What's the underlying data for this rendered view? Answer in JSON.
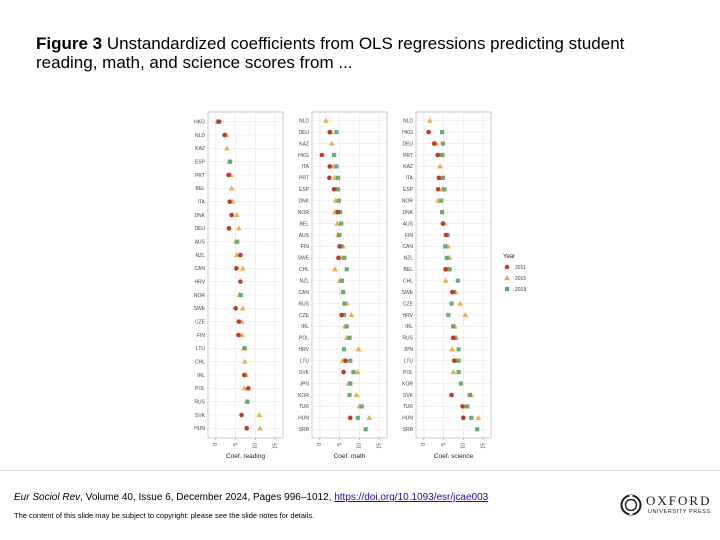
{
  "figure": {
    "label": "Figure 3",
    "title": "Unstandardized coefficients from OLS regressions predicting student reading, math, and science scores from ..."
  },
  "footer": {
    "journal": "Eur Sociol Rev",
    "details": ", Volume 40, Issue 6, December 2024, Pages 996–1012, ",
    "doi": "https://doi.org/10.1093/esr/jcae003",
    "note": "The content of this slide may be subject to copyright: please see the slide notes for details.",
    "logo_word": "OXFORD",
    "logo_sub": "UNIVERSITY PRESS"
  },
  "colors": {
    "2011": "#c0392b",
    "2015": "#e8a838",
    "2019": "#5aa469"
  },
  "chart_data": [
    {
      "type": "scatter",
      "xlabel": "Coef. reading",
      "xlim": [
        -2,
        17
      ],
      "xticks": [
        0,
        5,
        10,
        15
      ],
      "grid": true,
      "legend": "none",
      "categories": [
        "HKG",
        "NLD",
        "KAZ",
        "ESP",
        "PRT",
        "BEL",
        "ITA",
        "DNK",
        "DEU",
        "AUS",
        "NZL",
        "CAN",
        "HRV",
        "NOR",
        "SWE",
        "CZE",
        "FIN",
        "LTU",
        "CHL",
        "IRL",
        "POL",
        "RUS",
        "SVK",
        "HUN"
      ],
      "series": [
        {
          "name": "2011",
          "values": [
            0.8,
            2.2,
            null,
            null,
            3.2,
            null,
            3.5,
            4.0,
            3.3,
            null,
            6.2,
            5.2,
            6.2,
            null,
            5.0,
            5.8,
            5.7,
            null,
            null,
            7.2,
            8.2,
            null,
            6.5,
            7.8
          ]
        },
        {
          "name": "2015",
          "values": [
            0.4,
            2.6,
            2.8,
            3.4,
            3.8,
            4.0,
            4.2,
            5.3,
            5.8,
            5.0,
            5.3,
            6.8,
            null,
            6.0,
            6.8,
            6.5,
            6.6,
            7.0,
            7.3,
            7.6,
            7.2,
            7.8,
            11.0,
            11.2
          ]
        },
        {
          "name": "2019",
          "values": [
            0.6,
            null,
            null,
            3.6,
            null,
            null,
            null,
            null,
            null,
            5.4,
            null,
            null,
            null,
            6.3,
            null,
            null,
            null,
            7.3,
            null,
            null,
            null,
            8.0,
            null,
            null
          ]
        }
      ]
    },
    {
      "type": "scatter",
      "xlabel": "Coef. math",
      "xlim": [
        -2,
        17
      ],
      "xticks": [
        0,
        5,
        10,
        15
      ],
      "grid": true,
      "legend": "none",
      "categories": [
        "NLD",
        "DEU",
        "KAZ",
        "HKG",
        "ITA",
        "PRT",
        "ESP",
        "DNK",
        "NOR",
        "BEL",
        "AUS",
        "FIN",
        "SWE",
        "CHL",
        "NZL",
        "CAN",
        "RUS",
        "CZE",
        "IRL",
        "POL",
        "HRV",
        "LTU",
        "SVK",
        "JPN",
        "KOR",
        "TUR",
        "HUN",
        "SRB"
      ],
      "series": [
        {
          "name": "2011",
          "values": [
            null,
            2.5,
            null,
            0.5,
            2.5,
            2.4,
            3.6,
            null,
            4.5,
            null,
            null,
            5.0,
            4.7,
            null,
            null,
            null,
            null,
            5.5,
            null,
            null,
            null,
            6.5,
            6.0,
            null,
            null,
            null,
            7.7,
            null
          ]
        },
        {
          "name": "2015",
          "values": [
            1.5,
            2.8,
            3.0,
            null,
            3.4,
            3.8,
            4.2,
            4.0,
            3.8,
            4.4,
            4.6,
            5.8,
            5.4,
            3.8,
            5.0,
            5.8,
            6.8,
            8.0,
            6.3,
            6.8,
            9.8,
            5.8,
            9.6,
            7.3,
            9.3,
            10.0,
            12.5,
            null
          ]
        },
        {
          "name": "2019",
          "values": [
            null,
            4.2,
            null,
            3.6,
            4.2,
            4.6,
            4.6,
            4.8,
            5.1,
            5.4,
            4.9,
            5.4,
            6.2,
            6.8,
            5.6,
            5.9,
            6.2,
            6.1,
            6.8,
            7.5,
            6.1,
            7.7,
            8.5,
            7.7,
            7.5,
            10.6,
            9.6,
            11.6
          ]
        }
      ]
    },
    {
      "type": "scatter",
      "xlabel": "Coef. science",
      "xlim": [
        -2,
        17
      ],
      "xticks": [
        0,
        5,
        10,
        15
      ],
      "grid": true,
      "legend": "right",
      "legend_title": "Year",
      "categories": [
        "NLD",
        "HKG",
        "DEU",
        "PRT",
        "KAZ",
        "ITA",
        "ESP",
        "NOR",
        "DNK",
        "AUS",
        "FIN",
        "CAN",
        "NZL",
        "BEL",
        "CHL",
        "SWE",
        "CZE",
        "HRV",
        "IRL",
        "RUS",
        "JPN",
        "LTU",
        "POL",
        "KOR",
        "SVK",
        "TUR",
        "HUN",
        "SRB"
      ],
      "series": [
        {
          "name": "2011",
          "values": [
            null,
            1.2,
            2.6,
            3.5,
            null,
            3.8,
            3.6,
            null,
            null,
            4.8,
            5.6,
            null,
            null,
            5.5,
            null,
            7.2,
            null,
            null,
            null,
            7.4,
            null,
            7.7,
            null,
            null,
            7.0,
            9.8,
            10.0,
            null
          ]
        },
        {
          "name": "2015",
          "values": [
            1.5,
            null,
            3.2,
            4.0,
            4.1,
            4.8,
            4.7,
            3.6,
            null,
            5.2,
            null,
            6.1,
            6.5,
            6.2,
            5.5,
            8.0,
            9.2,
            10.5,
            7.8,
            8.2,
            7.2,
            8.2,
            7.5,
            null,
            12.0,
            10.5,
            13.8,
            null
          ]
        },
        {
          "name": "2019",
          "values": [
            null,
            4.6,
            4.8,
            4.7,
            null,
            4.8,
            5.2,
            4.4,
            4.6,
            null,
            6.0,
            5.4,
            5.8,
            6.5,
            8.6,
            7.6,
            7.0,
            6.2,
            7.4,
            7.8,
            8.8,
            8.8,
            8.8,
            9.4,
            11.6,
            11.0,
            12.0,
            13.5
          ]
        }
      ]
    }
  ]
}
